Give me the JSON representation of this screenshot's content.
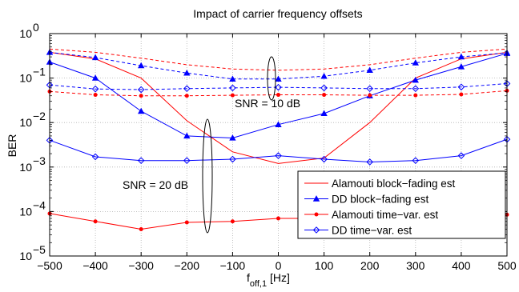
{
  "chart_data": {
    "type": "line",
    "title": "Impact of carrier frequency offsets",
    "xlabel": {
      "main": "f",
      "sub": "off,1",
      "unit": " [Hz]"
    },
    "ylabel": "BER",
    "y_scale": "log",
    "xlim": [
      -500,
      500
    ],
    "ylim": [
      1e-05,
      1
    ],
    "x_ticks": [
      -500,
      -400,
      -300,
      -200,
      -100,
      0,
      100,
      200,
      300,
      400,
      500
    ],
    "x_tick_labels": [
      "−500",
      "−400",
      "−300",
      "−200",
      "−100",
      "0",
      "100",
      "200",
      "300",
      "400",
      "500"
    ],
    "y_ticks": [
      {
        "value": 1,
        "base": "10",
        "exp": "0"
      },
      {
        "value": 0.1,
        "base": "10",
        "exp": "−1"
      },
      {
        "value": 0.01,
        "base": "10",
        "exp": "−2"
      },
      {
        "value": 0.001,
        "base": "10",
        "exp": "−3"
      },
      {
        "value": 0.0001,
        "base": "10",
        "exp": "−4"
      },
      {
        "value": 1e-05,
        "base": "10",
        "exp": "−5"
      }
    ],
    "grid": true,
    "legend_position": "bottom-right",
    "x": [
      -500,
      -400,
      -300,
      -200,
      -100,
      0,
      100,
      200,
      300,
      400,
      500
    ],
    "series": [
      {
        "name": "Alamouti block−fading est",
        "snr_db": 20,
        "color": "#ff0000",
        "dash": "solid",
        "marker": "none",
        "values": [
          0.38,
          0.27,
          0.1,
          0.011,
          0.0022,
          0.0012,
          0.0016,
          0.01,
          0.1,
          0.27,
          0.38
        ]
      },
      {
        "name": "DD block−fading est",
        "snr_db": 20,
        "color": "#0000ff",
        "dash": "solid",
        "marker": "triangle",
        "values": [
          0.23,
          0.1,
          0.018,
          0.005,
          0.0045,
          0.009,
          0.016,
          0.04,
          0.09,
          0.18,
          0.36
        ]
      },
      {
        "name": "Alamouti time−var. est",
        "snr_db": 20,
        "color": "#ff0000",
        "dash": "solid",
        "marker": "dot",
        "values": [
          9e-05,
          6e-05,
          4e-05,
          5.7e-05,
          6e-05,
          7e-05,
          7e-05,
          7e-05,
          7e-05,
          8e-05,
          8.5e-05
        ]
      },
      {
        "name": "DD time−var. est",
        "snr_db": 20,
        "color": "#0000ff",
        "dash": "solid",
        "marker": "diamond",
        "values": [
          0.004,
          0.0017,
          0.0014,
          0.0014,
          0.0015,
          0.0018,
          0.0015,
          0.0013,
          0.0014,
          0.0018,
          0.0042
        ]
      },
      {
        "name": "",
        "snr_db": 10,
        "color": "#ff0000",
        "dash": "dashed",
        "marker": "none",
        "values": [
          0.45,
          0.38,
          0.28,
          0.2,
          0.16,
          0.15,
          0.16,
          0.2,
          0.28,
          0.38,
          0.45
        ]
      },
      {
        "name": "",
        "snr_db": 10,
        "color": "#0000ff",
        "dash": "dashed",
        "marker": "triangle",
        "values": [
          0.38,
          0.29,
          0.19,
          0.13,
          0.095,
          0.095,
          0.11,
          0.15,
          0.22,
          0.3,
          0.37
        ]
      },
      {
        "name": "",
        "snr_db": 10,
        "color": "#ff0000",
        "dash": "dashed",
        "marker": "dot",
        "values": [
          0.05,
          0.042,
          0.04,
          0.04,
          0.041,
          0.042,
          0.042,
          0.041,
          0.041,
          0.043,
          0.052
        ]
      },
      {
        "name": "",
        "snr_db": 10,
        "color": "#0000ff",
        "dash": "dashed",
        "marker": "diamond",
        "values": [
          0.07,
          0.057,
          0.055,
          0.058,
          0.06,
          0.062,
          0.06,
          0.058,
          0.058,
          0.063,
          0.075
        ]
      }
    ],
    "annotations": [
      {
        "text": "SNR = 10 dB",
        "near_x": 50,
        "near_y": 0.02
      },
      {
        "text": "SNR = 20 dB",
        "near_x": -250,
        "near_y": 0.00025
      }
    ]
  }
}
